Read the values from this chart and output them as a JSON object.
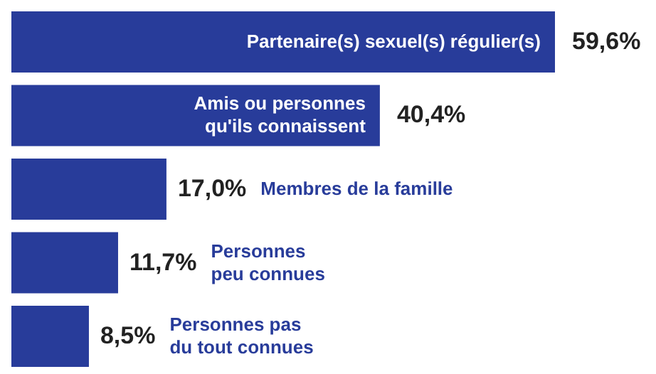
{
  "chart_data": {
    "type": "bar",
    "orientation": "horizontal",
    "categories": [
      "Partenaire(s) sexuel(s) régulier(s)",
      "Amis ou personnes\nqu'ils connaissent",
      "Membres de la famille",
      "Personnes\npeu connues",
      "Personnes pas\ndu tout connues"
    ],
    "values": [
      59.6,
      40.4,
      17.0,
      11.7,
      8.5
    ],
    "value_labels": [
      "59,6%",
      "40,4%",
      "17,0%",
      "11,7%",
      "8,5%"
    ],
    "color": "#283c9a"
  }
}
